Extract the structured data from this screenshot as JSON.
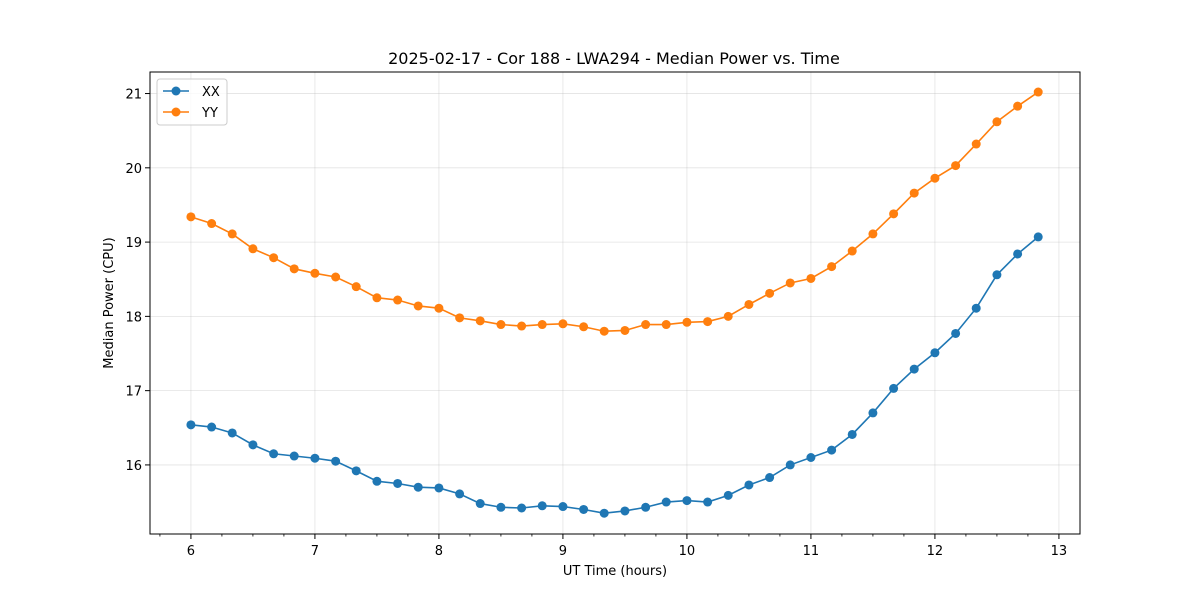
{
  "chart_data": {
    "type": "line",
    "title": "2025-02-17 - Cor 188 - LWA294 - Median Power vs. Time",
    "xlabel": "UT Time (hours)",
    "ylabel": "Median Power (CPU)",
    "xlim": [
      5.67,
      13.17
    ],
    "ylim": [
      15.07,
      21.29
    ],
    "xticks": [
      6,
      7,
      8,
      9,
      10,
      11,
      12,
      13
    ],
    "yticks": [
      16,
      17,
      18,
      19,
      20,
      21
    ],
    "grid": true,
    "legend_position": "top-left",
    "x": [
      6.0,
      6.167,
      6.333,
      6.5,
      6.667,
      6.833,
      7.0,
      7.167,
      7.333,
      7.5,
      7.667,
      7.833,
      8.0,
      8.167,
      8.333,
      8.5,
      8.667,
      8.833,
      9.0,
      9.167,
      9.333,
      9.5,
      9.667,
      9.833,
      10.0,
      10.167,
      10.333,
      10.5,
      10.667,
      10.833,
      11.0,
      11.167,
      11.333,
      11.5,
      11.667,
      11.833,
      12.0,
      12.167,
      12.333,
      12.5,
      12.667,
      12.833
    ],
    "series": [
      {
        "name": "XX",
        "color": "#1f77b4",
        "values": [
          16.54,
          16.51,
          16.43,
          16.27,
          16.15,
          16.12,
          16.09,
          16.05,
          15.92,
          15.78,
          15.75,
          15.7,
          15.69,
          15.61,
          15.48,
          15.43,
          15.42,
          15.45,
          15.44,
          15.4,
          15.35,
          15.38,
          15.43,
          15.5,
          15.52,
          15.5,
          15.59,
          15.73,
          15.83,
          16.0,
          16.1,
          16.2,
          16.41,
          16.7,
          17.03,
          17.29,
          17.51,
          17.77,
          18.11,
          18.56,
          18.84,
          19.07
        ]
      },
      {
        "name": "YY",
        "color": "#ff7f0e",
        "values": [
          19.34,
          19.25,
          19.11,
          18.91,
          18.79,
          18.64,
          18.58,
          18.53,
          18.4,
          18.25,
          18.22,
          18.14,
          18.11,
          17.98,
          17.94,
          17.89,
          17.87,
          17.89,
          17.9,
          17.86,
          17.8,
          17.81,
          17.89,
          17.89,
          17.92,
          17.93,
          18.0,
          18.16,
          18.31,
          18.45,
          18.51,
          18.67,
          18.88,
          19.11,
          19.38,
          19.66,
          19.86,
          20.03,
          20.32,
          20.62,
          20.83,
          21.02
        ]
      }
    ]
  }
}
